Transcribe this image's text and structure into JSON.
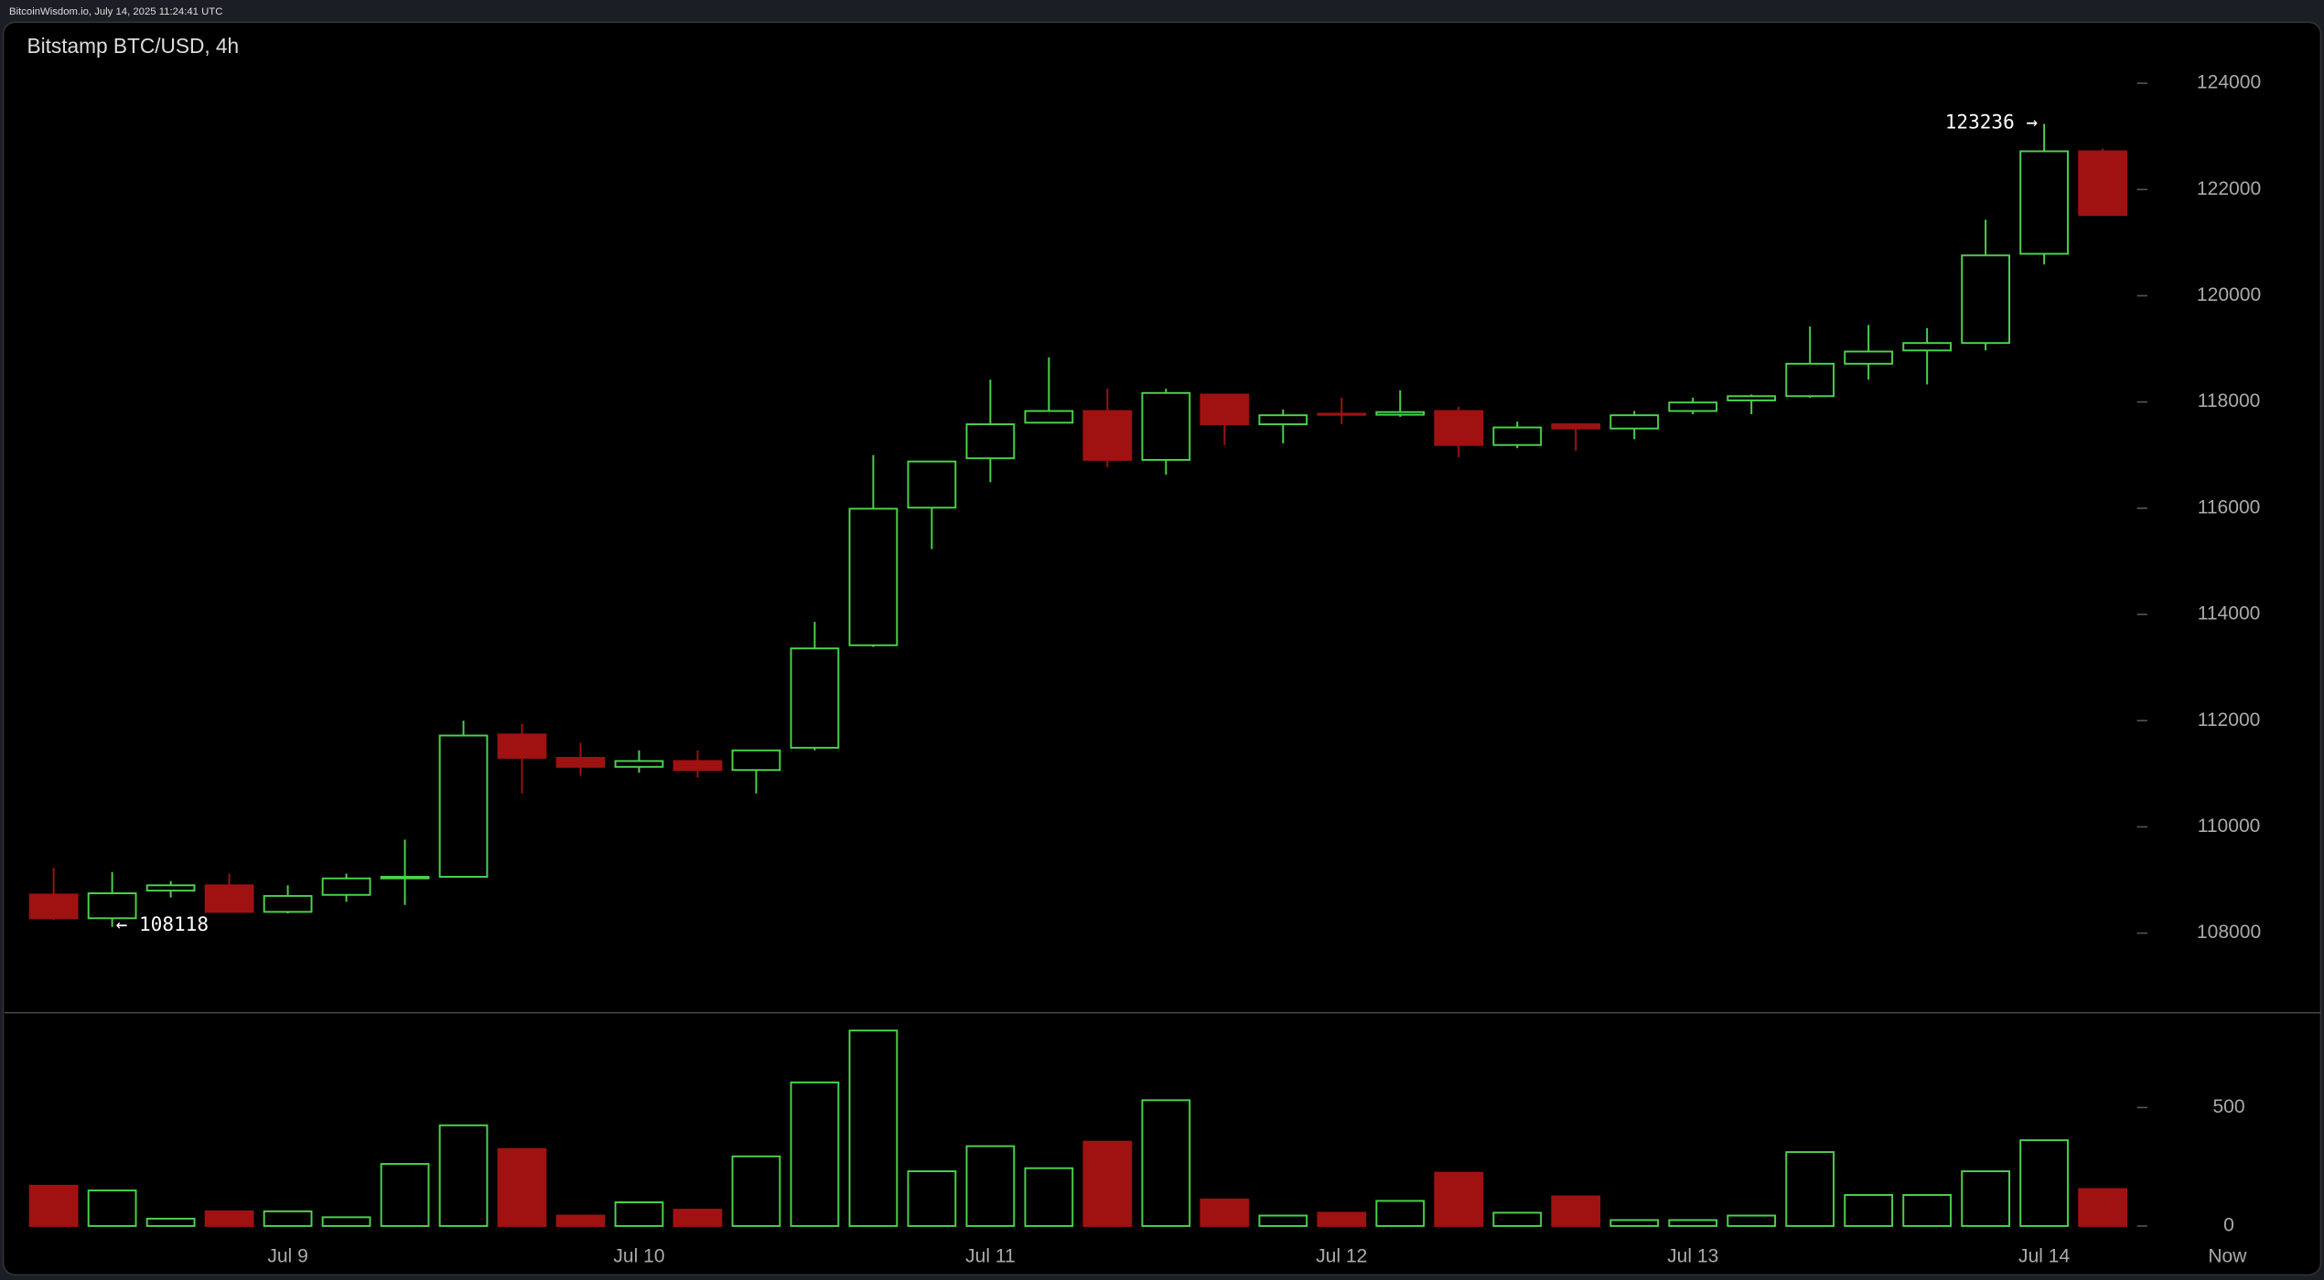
{
  "chart_data": {
    "type": "candlestick",
    "source": "BitcoinWisdom.io, July 14, 2025 11:24:41 UTC",
    "title": "Bitstamp BTC/USD, 4h",
    "categories": [
      null,
      null,
      null,
      null,
      "Jul 9",
      null,
      null,
      null,
      null,
      null,
      "Jul 10",
      null,
      null,
      null,
      null,
      null,
      "Jul 11",
      null,
      null,
      null,
      null,
      null,
      "Jul 12",
      null,
      null,
      null,
      null,
      null,
      "Jul 13",
      null,
      null,
      null,
      null,
      null,
      "Jul 14",
      null
    ],
    "now_label": "Now",
    "open": [
      108727,
      108280,
      108800,
      108900,
      108400,
      108720,
      109030,
      109060,
      111740,
      111300,
      111130,
      111240,
      111070,
      111490,
      113420,
      116010,
      116940,
      117610,
      117830,
      116910,
      118140,
      117580,
      117780,
      117760,
      117830,
      117190,
      117580,
      117500,
      117830,
      118030,
      118110,
      118720,
      118970,
      119110,
      120790,
      122720
    ],
    "high": [
      109230,
      109150,
      108980,
      109120,
      108900,
      109120,
      109760,
      112000,
      111940,
      111580,
      111440,
      111440,
      111440,
      113860,
      117000,
      116880,
      118420,
      118840,
      118250,
      118250,
      118140,
      117860,
      118080,
      118220,
      117910,
      117630,
      117580,
      117830,
      118080,
      118140,
      119420,
      119450,
      119390,
      121430,
      123236,
      122770
    ],
    "low": [
      108250,
      108118,
      108670,
      108400,
      108370,
      108590,
      108530,
      109060,
      110630,
      110960,
      111020,
      110930,
      110630,
      111440,
      113390,
      115230,
      116490,
      117610,
      116770,
      116630,
      117190,
      117220,
      117580,
      117720,
      116960,
      117130,
      117080,
      117300,
      117770,
      117770,
      118080,
      118420,
      118330,
      118970,
      120590,
      121520
    ],
    "close": [
      108280,
      108750,
      108900,
      108400,
      108700,
      109030,
      109060,
      111720,
      111300,
      111130,
      111240,
      111070,
      111440,
      113360,
      115990,
      116880,
      117580,
      117830,
      116910,
      118170,
      117580,
      117750,
      117760,
      117810,
      117190,
      117520,
      117500,
      117750,
      117990,
      118110,
      118720,
      118950,
      119110,
      120760,
      122720,
      121520
    ],
    "volume": [
      170,
      150,
      31,
      62,
      62,
      37,
      262,
      425,
      325,
      44,
      100,
      69,
      294,
      606,
      825,
      231,
      337,
      244,
      356,
      531,
      112,
      44,
      56,
      106,
      225,
      56,
      125,
      25,
      25,
      44,
      312,
      131,
      131,
      231,
      362,
      156
    ],
    "up_color": "#4cd44c",
    "down_color": "#a01212",
    "ylim": [
      106500,
      125150
    ],
    "yticks": [
      108000,
      110000,
      112000,
      114000,
      116000,
      118000,
      120000,
      122000,
      124000
    ],
    "volume_ylim": [
      0,
      900
    ],
    "volume_yticks": [
      0,
      500
    ],
    "annotations": [
      {
        "text": "123236 →"
      },
      {
        "text": "← 108118"
      }
    ]
  }
}
